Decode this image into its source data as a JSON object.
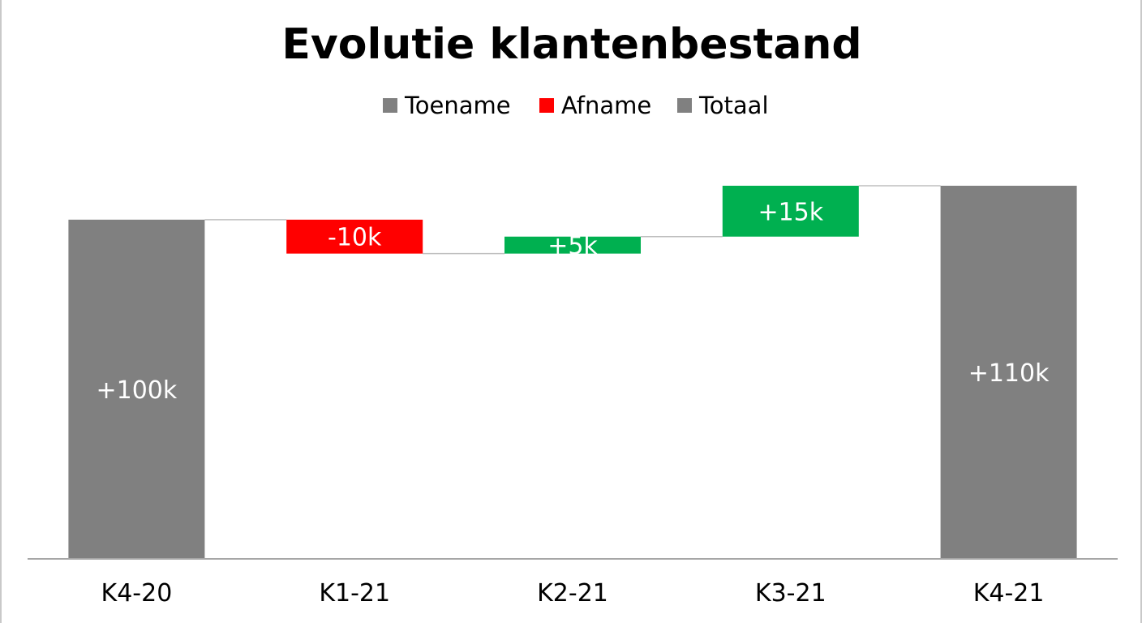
{
  "chart_data": {
    "type": "waterfall",
    "title": "Evolutie klantenbestand",
    "legend": [
      {
        "name": "Toename",
        "color": "#808080"
      },
      {
        "name": "Afname",
        "color": "#ff0000"
      },
      {
        "name": "Totaal",
        "color": "#808080"
      }
    ],
    "legend_position": "top",
    "grid": false,
    "colors": {
      "increase": "#00b050",
      "decrease": "#ff0000",
      "total": "#808080",
      "connector": "#bfbfbf",
      "axis": "#a6a6a6"
    },
    "categories": [
      "K4-20",
      "K1-21",
      "K2-21",
      "K3-21",
      "K4-21"
    ],
    "values": [
      100,
      -10,
      5,
      15,
      110
    ],
    "kinds": [
      "total",
      "decrease",
      "increase",
      "increase",
      "total"
    ],
    "labels": [
      "+100k",
      "-10k",
      "+5k",
      "+15k",
      "+110k"
    ],
    "ylim": [
      0,
      110
    ]
  }
}
